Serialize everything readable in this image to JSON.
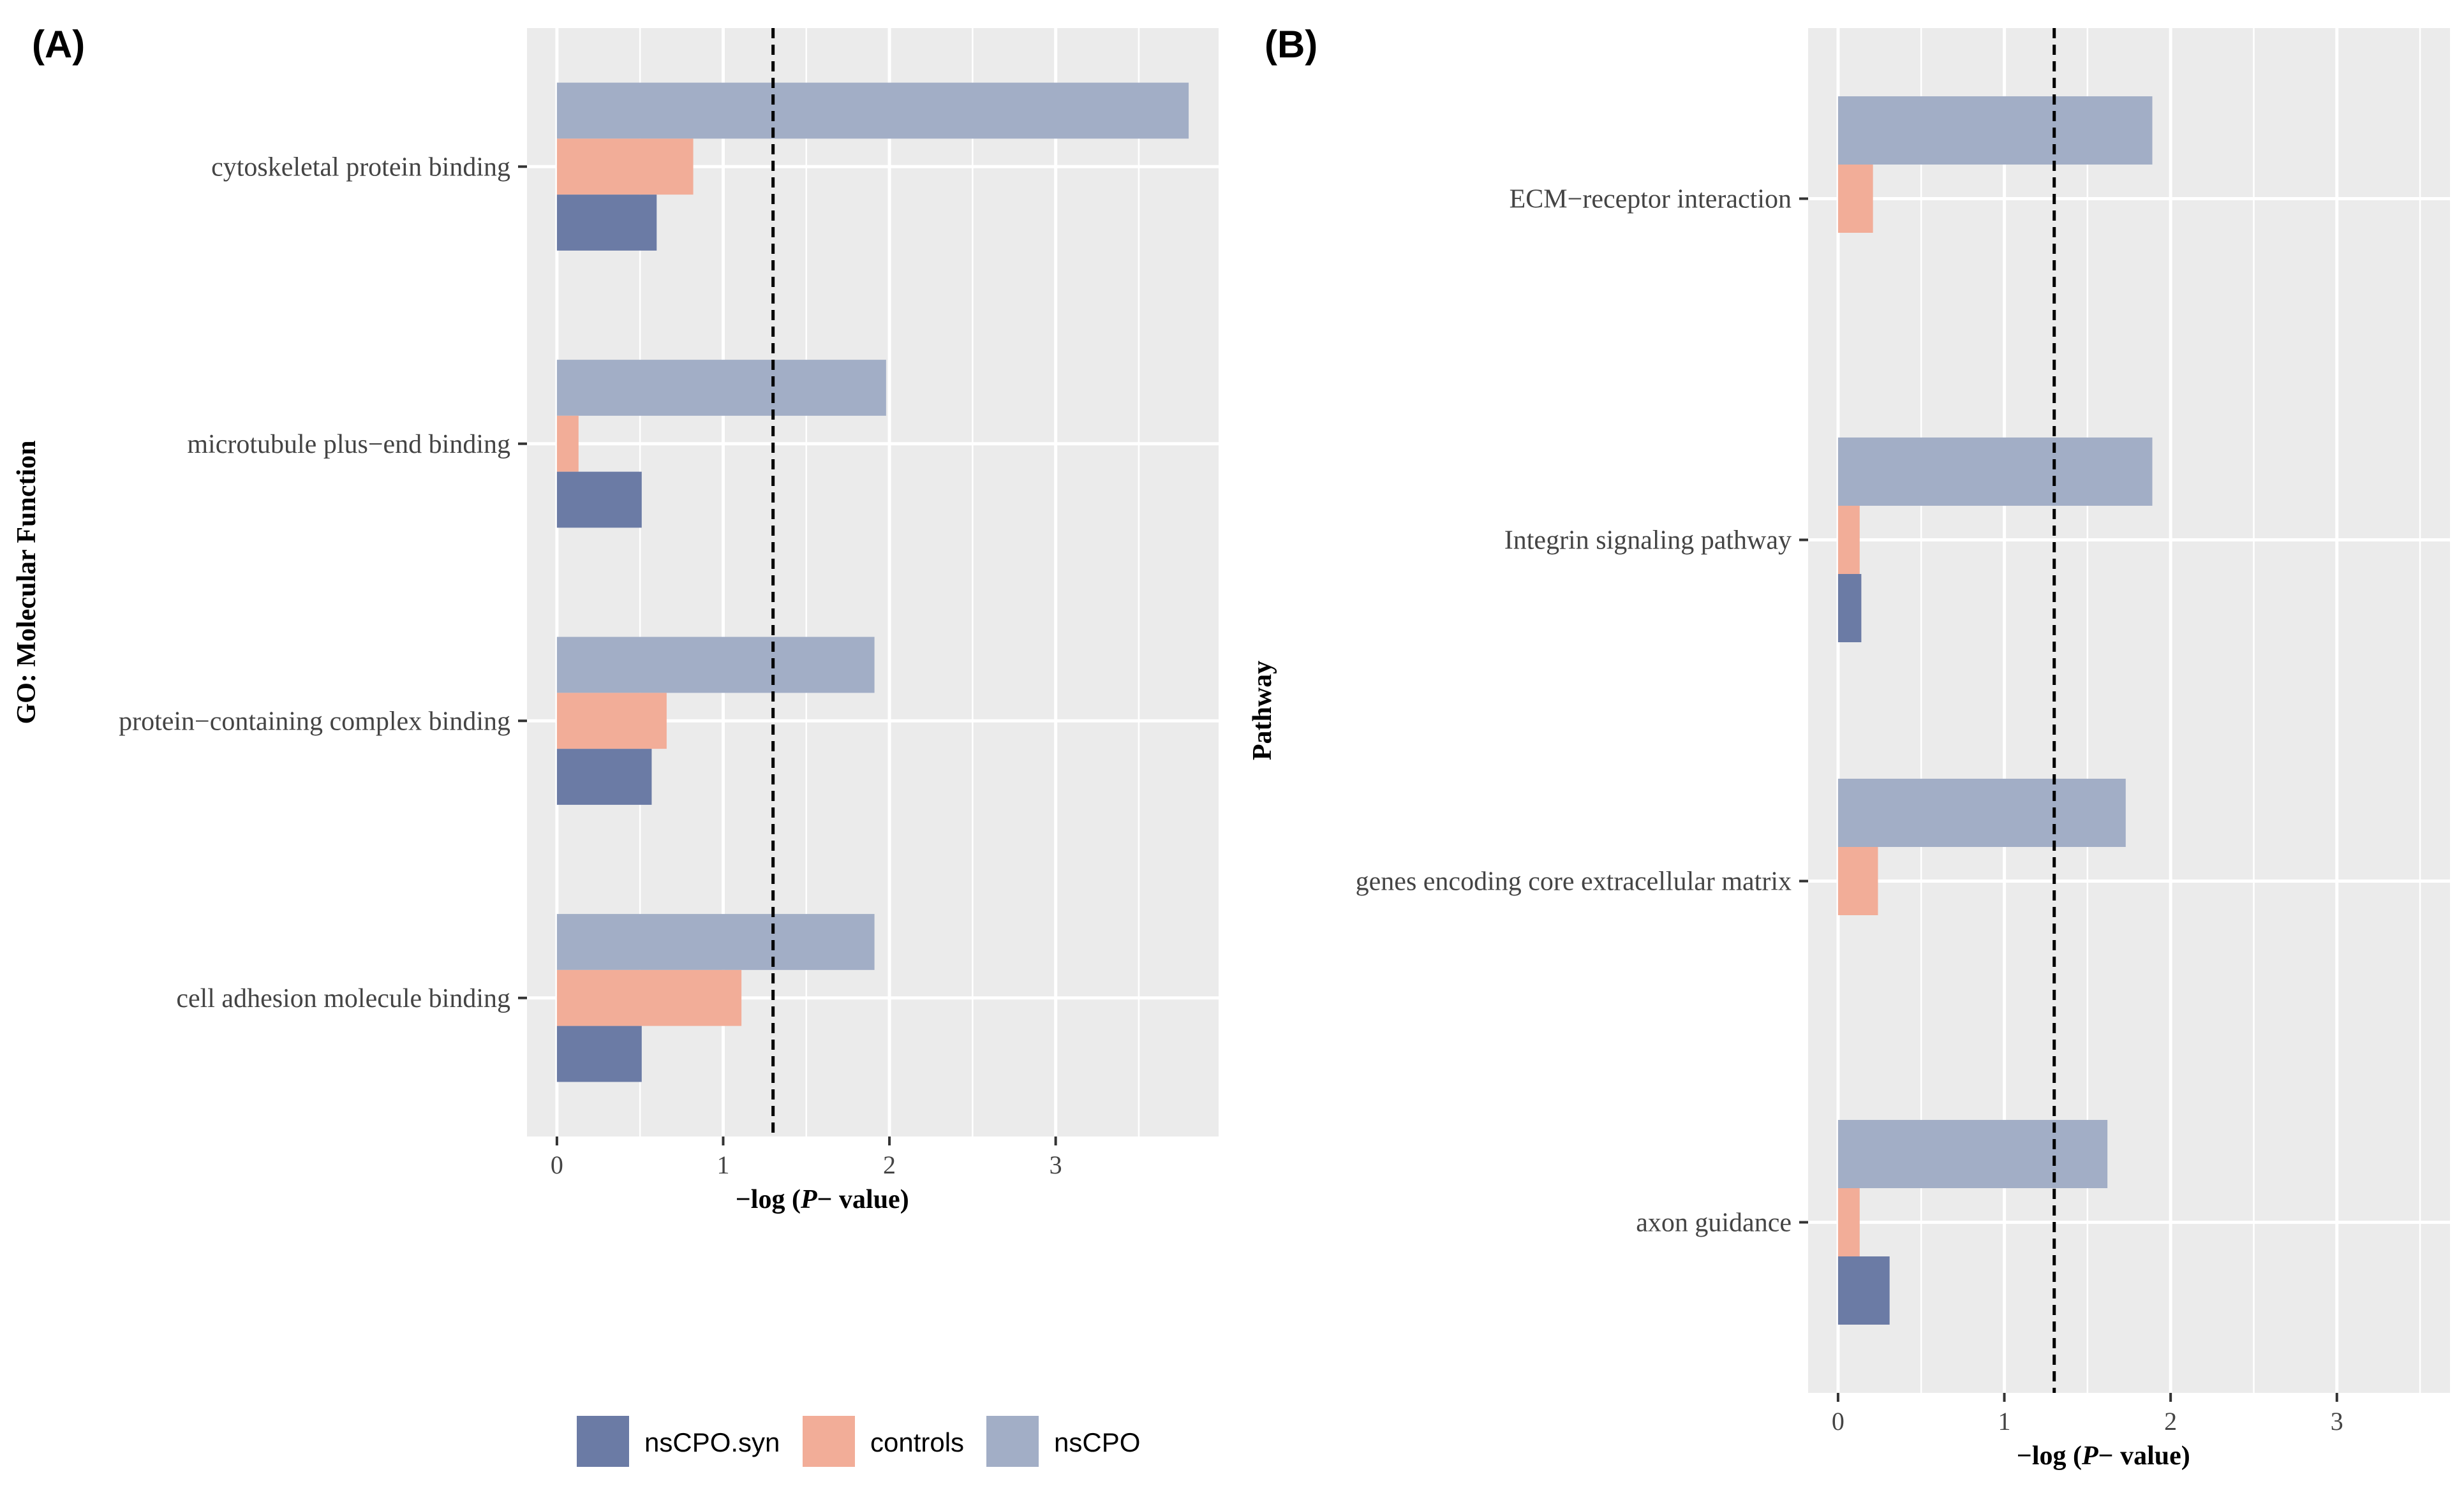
{
  "colors": {
    "panel_bg": "#EBEBEB",
    "grid": "#FFFFFF",
    "nsCPO.syn": "#6B7BA5",
    "controls": "#F2AD98",
    "nsCPO": "#A2AEC6",
    "threshold": "#000000"
  },
  "legend": {
    "items": [
      {
        "key": "nsCPO.syn",
        "label": "nsCPO.syn"
      },
      {
        "key": "controls",
        "label": "controls"
      },
      {
        "key": "nsCPO",
        "label": "nsCPO"
      }
    ]
  },
  "chart_data": [
    {
      "panel": "(A)",
      "type": "bar",
      "orientation": "horizontal",
      "title": "",
      "ylabel": "GO: Molecular Function",
      "xlabel_parts": [
        "−log (",
        "P",
        "− value)"
      ],
      "xlim": [
        -0.18,
        3.98
      ],
      "xticks": [
        0,
        1,
        2,
        3
      ],
      "threshold": 1.3,
      "categories": [
        "cytoskeletal protein binding",
        "microtubule plus−end binding",
        "protein−containing complex binding",
        "cell adhesion molecule binding"
      ],
      "series": [
        {
          "name": "nsCPO",
          "values": [
            3.8,
            1.98,
            1.91,
            1.91
          ]
        },
        {
          "name": "controls",
          "values": [
            0.82,
            0.13,
            0.66,
            1.11
          ]
        },
        {
          "name": "nsCPO.syn",
          "values": [
            0.6,
            0.51,
            0.57,
            0.51
          ]
        }
      ]
    },
    {
      "panel": "(B)",
      "type": "bar",
      "orientation": "horizontal",
      "title": "",
      "ylabel": "Pathway",
      "xlabel_parts": [
        "−log (",
        "P",
        "− value)"
      ],
      "xlim": [
        -0.18,
        3.68
      ],
      "xticks": [
        0,
        1,
        2,
        3
      ],
      "threshold": 1.3,
      "categories": [
        "ECM−receptor interaction",
        "Integrin signaling pathway",
        "genes encoding core extracellular matrix",
        "axon guidance"
      ],
      "series": [
        {
          "name": "nsCPO",
          "values": [
            1.89,
            1.89,
            1.73,
            1.62
          ]
        },
        {
          "name": "controls",
          "values": [
            0.21,
            0.13,
            0.24,
            0.13
          ]
        },
        {
          "name": "nsCPO.syn",
          "values": [
            0,
            0.14,
            0,
            0.31
          ]
        }
      ]
    }
  ]
}
